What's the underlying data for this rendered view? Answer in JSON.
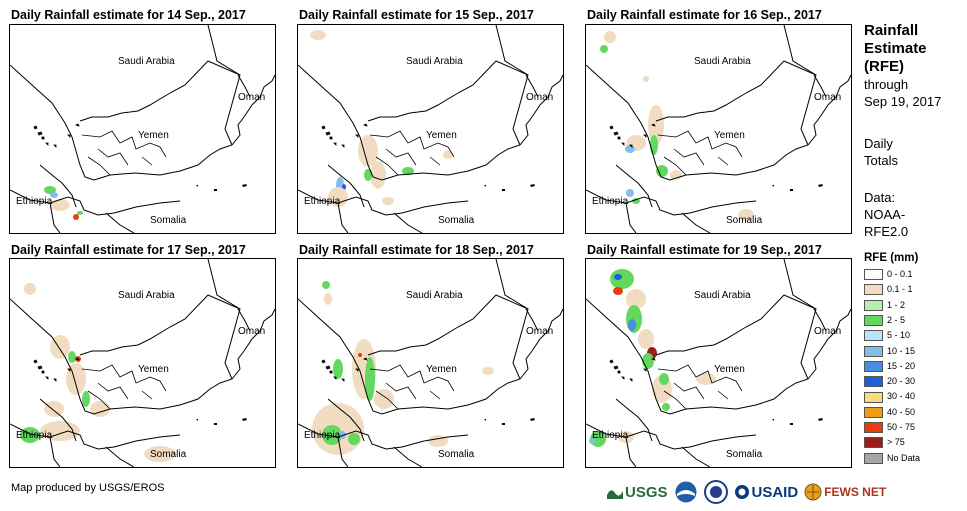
{
  "panels": [
    {
      "title": "Daily Rainfall estimate for 14 Sep., 2017"
    },
    {
      "title": "Daily Rainfall estimate for 15 Sep., 2017"
    },
    {
      "title": "Daily Rainfall estimate for 16 Sep., 2017"
    },
    {
      "title": "Daily Rainfall estimate for 17 Sep., 2017"
    },
    {
      "title": "Daily Rainfall estimate for 18 Sep., 2017"
    },
    {
      "title": "Daily Rainfall estimate for 19 Sep., 2017"
    }
  ],
  "map_labels": {
    "saudi": "Saudi Arabia",
    "oman": "Oman",
    "yemen": "Yemen",
    "ethiopia": "Ethiopia",
    "somalia": "Somalia"
  },
  "sidebar": {
    "title_line1": "Rainfall",
    "title_line2": "Estimate",
    "title_line3": "(RFE)",
    "through_label": "through",
    "through_date": "Sep 19, 2017",
    "totals_line1": "Daily",
    "totals_line2": "Totals",
    "data_label": "Data:",
    "data_line1": "NOAA-",
    "data_line2": "RFE2.0"
  },
  "legend": {
    "title": "RFE (mm)",
    "items": [
      {
        "label": "0 - 0.1",
        "color": "#ffffff"
      },
      {
        "label": "0.1 - 1",
        "color": "#f1dcc1"
      },
      {
        "label": "1 - 2",
        "color": "#b5eeae"
      },
      {
        "label": "2 - 5",
        "color": "#62d95e"
      },
      {
        "label": "5 - 10",
        "color": "#b6e6f6"
      },
      {
        "label": "10 - 15",
        "color": "#86bce8"
      },
      {
        "label": "15 - 20",
        "color": "#4a8ce3"
      },
      {
        "label": "20 - 30",
        "color": "#1f5fd8"
      },
      {
        "label": "30 - 40",
        "color": "#f7dd7c"
      },
      {
        "label": "40 - 50",
        "color": "#f39c12"
      },
      {
        "label": "50 - 75",
        "color": "#ea3c0e"
      },
      {
        "label": "> 75",
        "color": "#9e1b1b"
      },
      {
        "label": "No Data",
        "color": "#a6a6a6"
      }
    ]
  },
  "footer": {
    "credit": "Map produced by USGS/EROS",
    "logo_usgs": "USGS",
    "logo_usaid": "USAID",
    "logo_fews": "FEWS NET"
  }
}
